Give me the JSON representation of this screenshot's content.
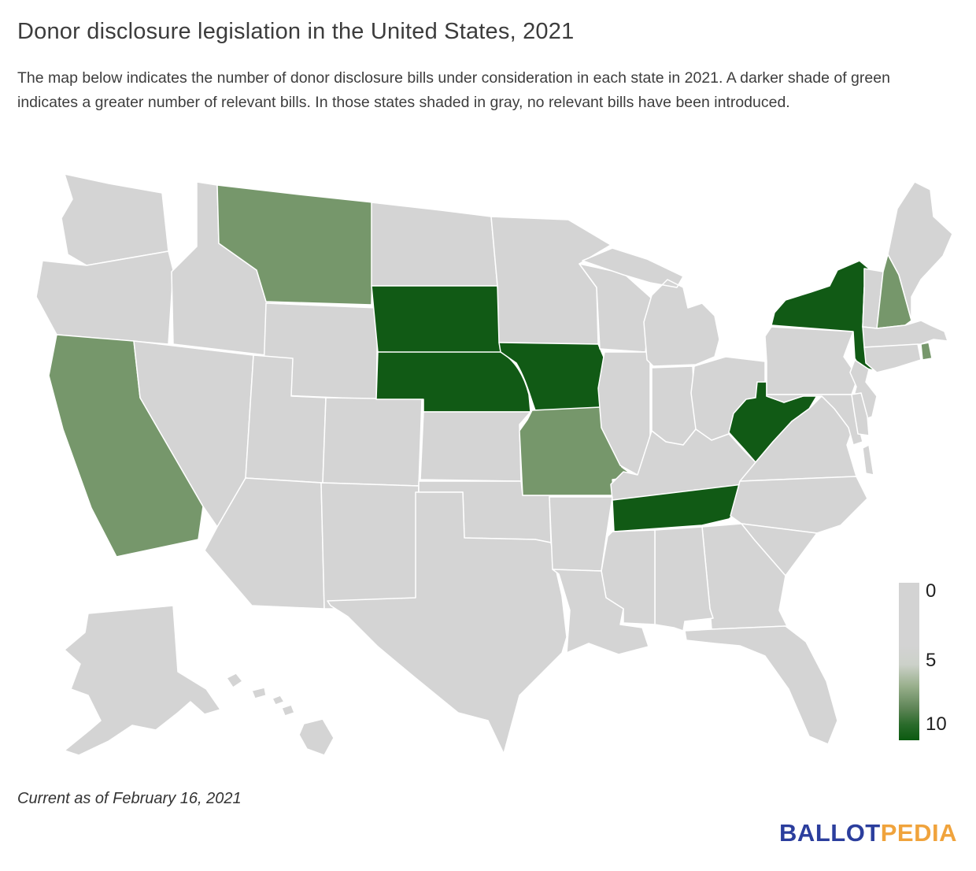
{
  "header": {
    "title": "Donor disclosure legislation in the United States, 2021",
    "description": "The map below indicates the number of donor disclosure bills under consideration in each state in 2021. A darker shade of green indicates a greater number of relevant bills. In those states shaded in gray, no relevant bills have been introduced."
  },
  "legend": {
    "ticks": [
      "0",
      "5",
      "10"
    ],
    "gradient_stops": [
      "#d3d3d3 0%",
      "#d3d3d3 40%",
      "#ccd1c9 52%",
      "#9bb18f 65%",
      "#5d8455 80%",
      "#2a6b2b 90%",
      "#0b5a10 100%"
    ]
  },
  "map": {
    "border_color": "#ffffff",
    "shade_colors": {
      "none": "#d4d4d4",
      "medium": "#76976b",
      "dark": "#115a15"
    },
    "state_shades": {
      "CA": "medium",
      "MT": "medium",
      "MO": "medium",
      "NH": "medium",
      "RI": "medium",
      "SD": "dark",
      "NE": "dark",
      "IA": "dark",
      "TN": "dark",
      "WV": "dark",
      "NY": "dark"
    }
  },
  "footer": {
    "current_as_of": "Current as of February 16, 2021",
    "logo": {
      "ballot": "BALLOT",
      "pedia": "PEDIA",
      "ballot_color": "#2b3e9d",
      "pedia_color": "#f0a33c"
    }
  },
  "chart_data": {
    "type": "heatmap",
    "subtype": "us_state_choropleth",
    "title": "Donor disclosure legislation in the United States, 2021",
    "unit": "number of donor disclosure bills under consideration",
    "colorbar": {
      "orientation": "vertical",
      "position": "right",
      "ticks": [
        0,
        5,
        10
      ],
      "min_color": "#d3d3d3",
      "max_color": "#0b5a10"
    },
    "dark_green_states_approx_8_to_10_bills": [
      "South Dakota",
      "Nebraska",
      "Iowa",
      "Tennessee",
      "West Virginia",
      "New York"
    ],
    "medium_green_states_approx_5_to_7_bills": [
      "California",
      "Montana",
      "Missouri",
      "New Hampshire",
      "Rhode Island"
    ],
    "gray_states_no_bills_introduced": [
      "Alabama",
      "Alaska",
      "Arizona",
      "Arkansas",
      "Colorado",
      "Connecticut",
      "Delaware",
      "Florida",
      "Georgia",
      "Hawaii",
      "Idaho",
      "Illinois",
      "Indiana",
      "Kansas",
      "Kentucky",
      "Louisiana",
      "Maine",
      "Maryland",
      "Massachusetts",
      "Michigan",
      "Minnesota",
      "Mississippi",
      "Nevada",
      "New Jersey",
      "New Mexico",
      "North Carolina",
      "North Dakota",
      "Ohio",
      "Oklahoma",
      "Oregon",
      "Pennsylvania",
      "South Carolina",
      "Texas",
      "Utah",
      "Vermont",
      "Virginia",
      "Washington",
      "Wisconsin",
      "Wyoming"
    ],
    "note": "Current as of February 16, 2021"
  }
}
